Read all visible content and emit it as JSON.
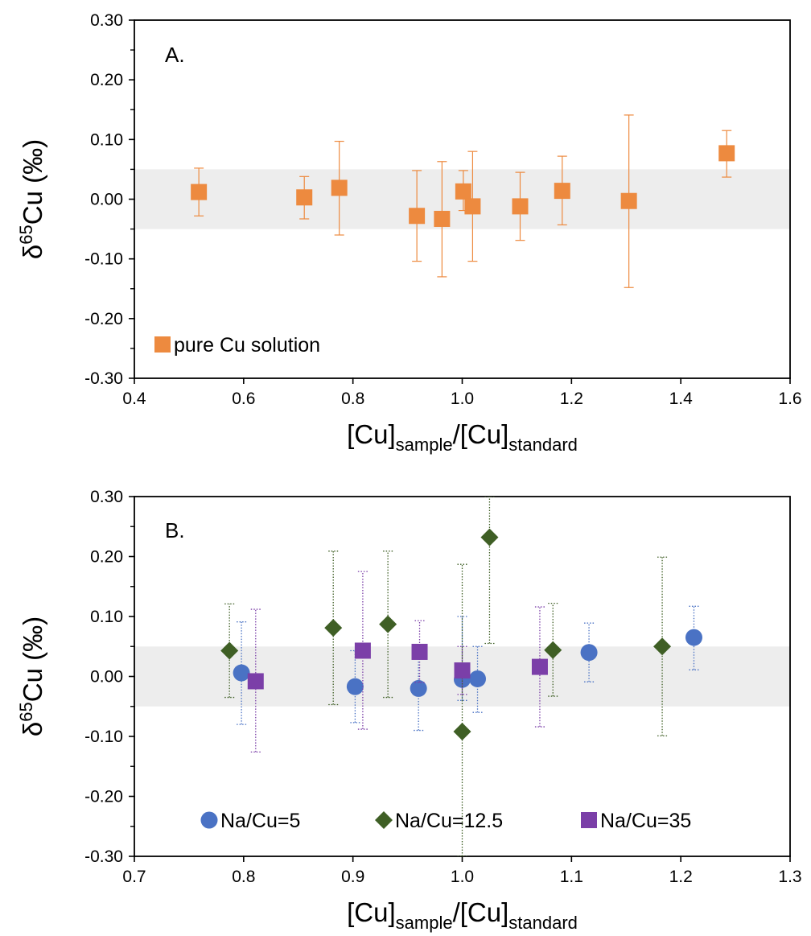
{
  "chart_data": [
    {
      "type": "scatter",
      "panel_label": "A.",
      "xlabel": {
        "main": "[Cu]",
        "sub1": "sample",
        "mid": "/[Cu]",
        "sub2": "standard"
      },
      "ylabel": {
        "main": "δ",
        "sup": "65",
        "rest": "Cu (‰)"
      },
      "xlim": [
        0.4,
        1.6
      ],
      "ylim": [
        -0.3,
        0.3
      ],
      "xticks": [
        0.4,
        0.6,
        0.8,
        1.0,
        1.2,
        1.4,
        1.6
      ],
      "xtick_labels": [
        "0.4",
        "0.6",
        "0.8",
        "1.0",
        "1.2",
        "1.4",
        "1.6"
      ],
      "yticks": [
        -0.3,
        -0.2,
        -0.1,
        0.0,
        0.1,
        0.2,
        0.3
      ],
      "ytick_labels": [
        "-0.30",
        "-0.20",
        "-0.10",
        "0.00",
        "0.10",
        "0.20",
        "0.30"
      ],
      "band": [
        -0.05,
        0.05
      ],
      "grid": false,
      "legend_position": "bottom-left",
      "series": [
        {
          "name": "pure Cu solution",
          "marker": "square",
          "color": "#ED8A3F",
          "error_style": "solid",
          "points": [
            {
              "x": 0.518,
              "y": 0.012,
              "lo": -0.028,
              "hi": 0.052
            },
            {
              "x": 0.711,
              "y": 0.003,
              "lo": -0.033,
              "hi": 0.038
            },
            {
              "x": 0.775,
              "y": 0.019,
              "lo": -0.06,
              "hi": 0.097
            },
            {
              "x": 0.917,
              "y": -0.028,
              "lo": -0.104,
              "hi": 0.048
            },
            {
              "x": 0.963,
              "y": -0.033,
              "lo": -0.13,
              "hi": 0.063
            },
            {
              "x": 1.002,
              "y": 0.013,
              "lo": -0.019,
              "hi": 0.048
            },
            {
              "x": 1.019,
              "y": -0.012,
              "lo": -0.104,
              "hi": 0.08
            },
            {
              "x": 1.106,
              "y": -0.012,
              "lo": -0.069,
              "hi": 0.045
            },
            {
              "x": 1.183,
              "y": 0.014,
              "lo": -0.043,
              "hi": 0.072
            },
            {
              "x": 1.305,
              "y": -0.003,
              "lo": -0.148,
              "hi": 0.141
            },
            {
              "x": 1.484,
              "y": 0.077,
              "lo": 0.037,
              "hi": 0.115
            }
          ]
        }
      ]
    },
    {
      "type": "scatter",
      "panel_label": "B.",
      "xlabel": {
        "main": "[Cu]",
        "sub1": "sample",
        "mid": "/[Cu]",
        "sub2": "standard"
      },
      "ylabel": {
        "main": "δ",
        "sup": "65",
        "rest": "Cu (‰)"
      },
      "xlim": [
        0.7,
        1.3
      ],
      "ylim": [
        -0.3,
        0.3
      ],
      "xticks": [
        0.7,
        0.8,
        0.9,
        1.0,
        1.1,
        1.2,
        1.3
      ],
      "xtick_labels": [
        "0.7",
        "0.8",
        "0.9",
        "1.0",
        "1.1",
        "1.2",
        "1.3"
      ],
      "yticks": [
        -0.3,
        -0.2,
        -0.1,
        0.0,
        0.1,
        0.2,
        0.3
      ],
      "ytick_labels": [
        "-0.30",
        "-0.20",
        "-0.10",
        "0.00",
        "0.10",
        "0.20",
        "0.30"
      ],
      "band": [
        -0.05,
        0.05
      ],
      "grid": false,
      "legend_position": "bottom",
      "series": [
        {
          "name": "Na/Cu=5",
          "marker": "circle",
          "color": "#4A72C4",
          "error_style": "dotted",
          "points": [
            {
              "x": 0.798,
              "y": 0.006,
              "lo": -0.08,
              "hi": 0.091
            },
            {
              "x": 0.902,
              "y": -0.017,
              "lo": -0.077,
              "hi": 0.043
            },
            {
              "x": 0.96,
              "y": -0.02,
              "lo": -0.09,
              "hi": 0.05
            },
            {
              "x": 1.0,
              "y": -0.005,
              "lo": -0.04,
              "hi": 0.1
            },
            {
              "x": 1.014,
              "y": -0.004,
              "lo": -0.06,
              "hi": 0.05
            },
            {
              "x": 1.116,
              "y": 0.04,
              "lo": -0.009,
              "hi": 0.089
            },
            {
              "x": 1.212,
              "y": 0.065,
              "lo": 0.011,
              "hi": 0.117
            }
          ]
        },
        {
          "name": "Na/Cu=12.5",
          "marker": "diamond",
          "color": "#3F5F25",
          "error_style": "dotted",
          "points": [
            {
              "x": 0.787,
              "y": 0.043,
              "lo": -0.035,
              "hi": 0.121
            },
            {
              "x": 0.882,
              "y": 0.081,
              "lo": -0.047,
              "hi": 0.209
            },
            {
              "x": 0.932,
              "y": 0.087,
              "lo": -0.035,
              "hi": 0.209
            },
            {
              "x": 1.0,
              "y": -0.092,
              "lo": -0.3,
              "hi": 0.187
            },
            {
              "x": 1.025,
              "y": 0.232,
              "lo": 0.055,
              "hi": 0.3
            },
            {
              "x": 1.083,
              "y": 0.044,
              "lo": -0.033,
              "hi": 0.122
            },
            {
              "x": 1.183,
              "y": 0.05,
              "lo": -0.099,
              "hi": 0.199
            }
          ]
        },
        {
          "name": "Na/Cu=35",
          "marker": "square",
          "color": "#7B3FA8",
          "error_style": "dotted",
          "points": [
            {
              "x": 0.811,
              "y": -0.008,
              "lo": -0.126,
              "hi": 0.112
            },
            {
              "x": 0.909,
              "y": 0.043,
              "lo": -0.088,
              "hi": 0.175
            },
            {
              "x": 0.961,
              "y": 0.041,
              "lo": -0.01,
              "hi": 0.093
            },
            {
              "x": 1.0,
              "y": 0.01,
              "lo": -0.03,
              "hi": 0.05
            },
            {
              "x": 1.071,
              "y": 0.016,
              "lo": -0.084,
              "hi": 0.116
            }
          ]
        }
      ]
    }
  ]
}
